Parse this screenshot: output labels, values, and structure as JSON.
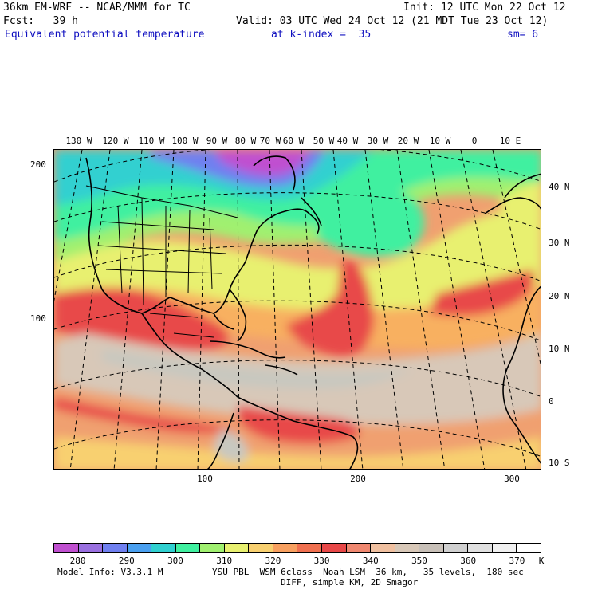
{
  "header": {
    "model": "36km EM-WRF -- NCAR/MMM for TC",
    "init": "Init: 12 UTC Mon 22 Oct 12",
    "fcst": "Fcst:   39 h",
    "valid": "Valid: 03 UTC Wed 24 Oct 12 (21 MDT Tue 23 Oct 12)",
    "field": "Equivalent potential temperature",
    "level": "at k-index =  35",
    "smooth": "sm= 6"
  },
  "map": {
    "lon_labels": [
      "130 W",
      "120 W",
      "110 W",
      "100 W",
      "90 W",
      "80 W",
      "70 W",
      "60 W",
      "50 W",
      "40 W",
      "30 W",
      "20 W",
      "10 W",
      "0",
      "10 E"
    ],
    "lat_labels": [
      "40 N",
      "30 N",
      "20 N",
      "10 N",
      "0",
      "10 S"
    ],
    "grid_y_labels": [
      "200",
      "100"
    ],
    "grid_x_labels": [
      "100",
      "200",
      "300"
    ]
  },
  "colorbar": {
    "labels": [
      "280",
      "290",
      "300",
      "310",
      "320",
      "330",
      "340",
      "350",
      "360",
      "370",
      "K"
    ],
    "colors": [
      "#c050d0",
      "#9a70e0",
      "#7080f0",
      "#4aa0f0",
      "#30d0d0",
      "#40f0a0",
      "#a0f070",
      "#e8f070",
      "#f8d070",
      "#f8a060",
      "#f07050",
      "#e84848",
      "#f08870",
      "#f0c0a0",
      "#d8c8b8",
      "#c8c0b8",
      "#d0d0d0",
      "#e0e0e0",
      "#f0f0f0",
      "#ffffff"
    ]
  },
  "footer": {
    "info": "Model Info: V3.3.1 M",
    "physics": "YSU PBL  WSM 6class  Noah LSM  36 km,   35 levels,  180 sec",
    "diff": "DIFF, simple KM, 2D Smagor"
  }
}
